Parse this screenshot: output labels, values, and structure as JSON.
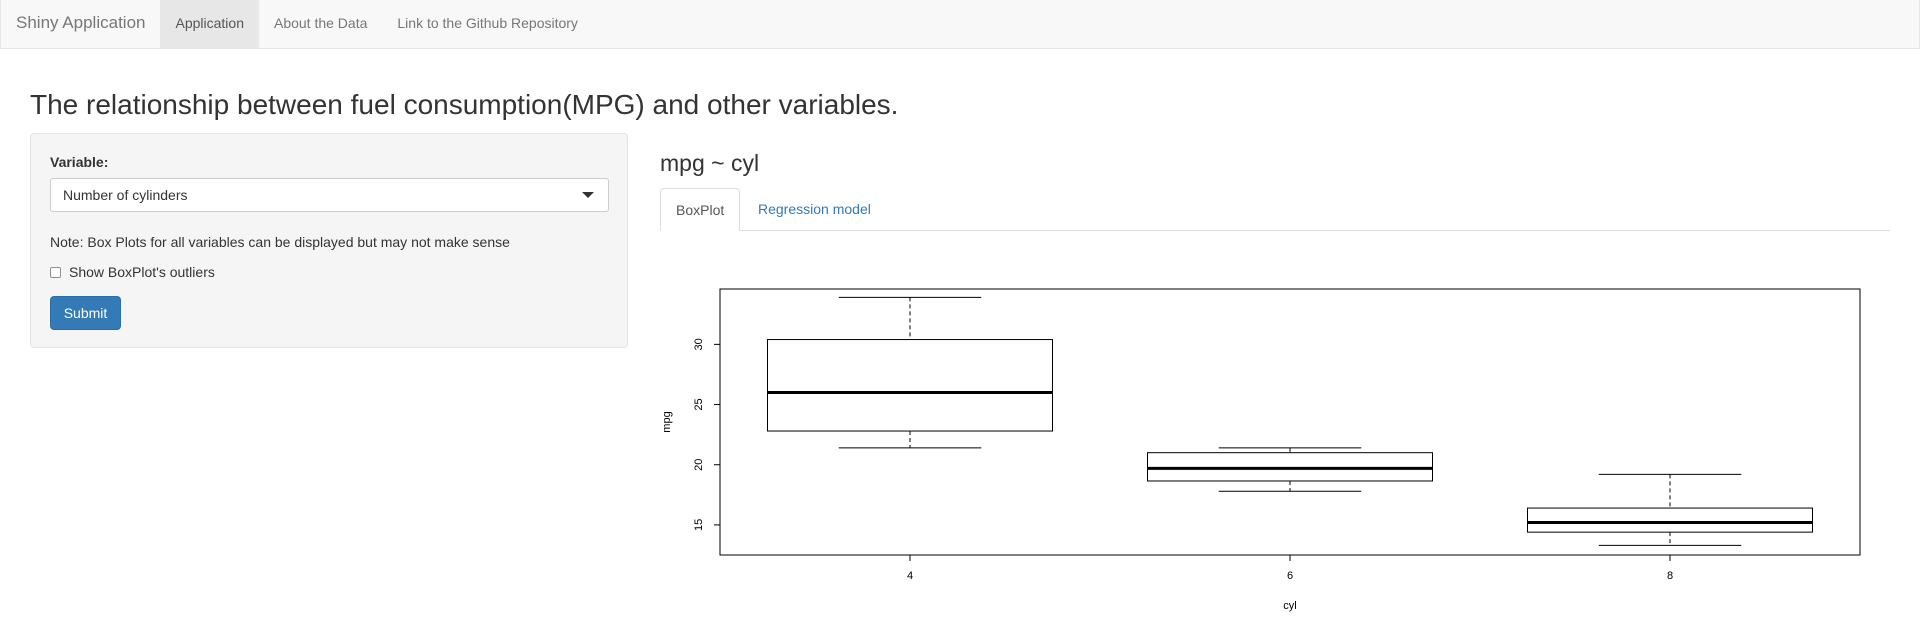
{
  "navbar": {
    "brand": "Shiny Application",
    "items": [
      {
        "label": "Application",
        "active": true
      },
      {
        "label": "About the Data",
        "active": false
      },
      {
        "label": "Link to the Github Repository",
        "active": false
      }
    ]
  },
  "page": {
    "title": "The relationship between fuel consumption(MPG) and other variables."
  },
  "sidebar": {
    "variable_label": "Variable:",
    "select_value": "Number of cylinders",
    "note": "Note: Box Plots for all variables can be displayed but may not make sense",
    "checkbox_label": "Show BoxPlot's outliers",
    "checkbox_checked": false,
    "submit_label": "Submit"
  },
  "main": {
    "title": "mpg ~ cyl",
    "tabs": [
      {
        "label": "BoxPlot",
        "active": true
      },
      {
        "label": "Regression model",
        "active": false
      }
    ]
  },
  "colors": {
    "accent": "#337ab7",
    "link": "#337ab7",
    "navbar_bg": "#f8f8f8"
  },
  "chart_data": {
    "type": "boxplot",
    "xlabel": "cyl",
    "ylabel": "mpg",
    "categories": [
      "4",
      "6",
      "8"
    ],
    "y_ticks": [
      15,
      20,
      25,
      30
    ],
    "ylim": [
      12.5,
      34.6
    ],
    "boxes": [
      {
        "category": "4",
        "whisker_low": 21.4,
        "q1": 22.8,
        "median": 26.0,
        "q3": 30.4,
        "whisker_high": 33.9
      },
      {
        "category": "6",
        "whisker_low": 17.8,
        "q1": 18.65,
        "median": 19.7,
        "q3": 21.0,
        "whisker_high": 21.4
      },
      {
        "category": "8",
        "whisker_low": 13.3,
        "q1": 14.4,
        "median": 15.2,
        "q3": 16.4,
        "whisker_high": 19.2
      }
    ]
  }
}
